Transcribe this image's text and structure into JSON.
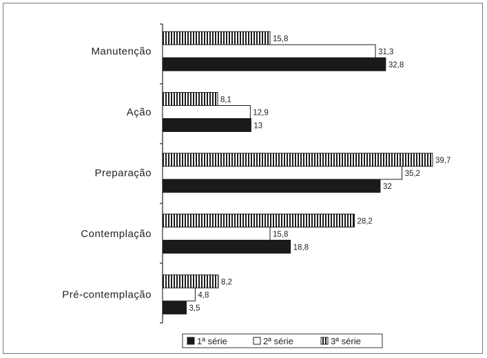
{
  "chart_data": {
    "type": "bar",
    "orientation": "horizontal",
    "categories": [
      "Manutenção",
      "Ação",
      "Preparação",
      "Contemplação",
      "Pré-contemplação"
    ],
    "series": [
      {
        "name": "1ª série",
        "values": [
          32.8,
          13,
          32,
          18.8,
          3.5
        ],
        "value_labels": [
          "32,8",
          "13",
          "32",
          "18,8",
          "3,5"
        ],
        "fill": "solid",
        "color": "#1a1a1a"
      },
      {
        "name": "2ª série",
        "values": [
          31.3,
          12.9,
          35.2,
          15.8,
          4.8
        ],
        "value_labels": [
          "31,3",
          "12,9",
          "35,2",
          "15,8",
          "4,8"
        ],
        "fill": "white",
        "color": "#ffffff"
      },
      {
        "name": "3ª série",
        "values": [
          15.8,
          8.1,
          39.7,
          28.2,
          8.2
        ],
        "value_labels": [
          "15,8",
          "8,1",
          "39,7",
          "28,2",
          "8,2"
        ],
        "fill": "vertical-stripes",
        "color": "#1a1a1a"
      }
    ],
    "xlim": [
      0,
      40
    ],
    "grid": false,
    "legend_position": "bottom"
  }
}
